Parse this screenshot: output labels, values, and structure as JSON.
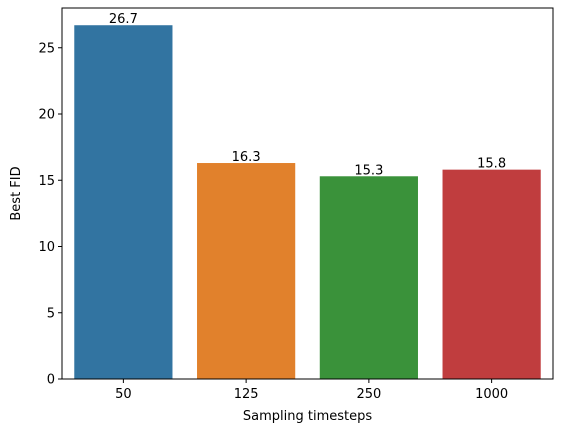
{
  "chart_data": {
    "type": "bar",
    "categories": [
      "50",
      "125",
      "250",
      "1000"
    ],
    "values": [
      26.7,
      16.3,
      15.3,
      15.8
    ],
    "value_labels": [
      "26.7",
      "16.3",
      "15.3",
      "15.8"
    ],
    "title": "",
    "xlabel": "Sampling timesteps",
    "ylabel": "Best FID",
    "ylim": [
      0,
      28
    ],
    "yticks": [
      0,
      5,
      10,
      15,
      20,
      25
    ],
    "ytick_labels": [
      "0",
      "5",
      "10",
      "15",
      "20",
      "25"
    ],
    "colors": [
      "#3274a1",
      "#e1812c",
      "#3a923a",
      "#c03d3e"
    ],
    "grid": false,
    "legend": "none"
  }
}
